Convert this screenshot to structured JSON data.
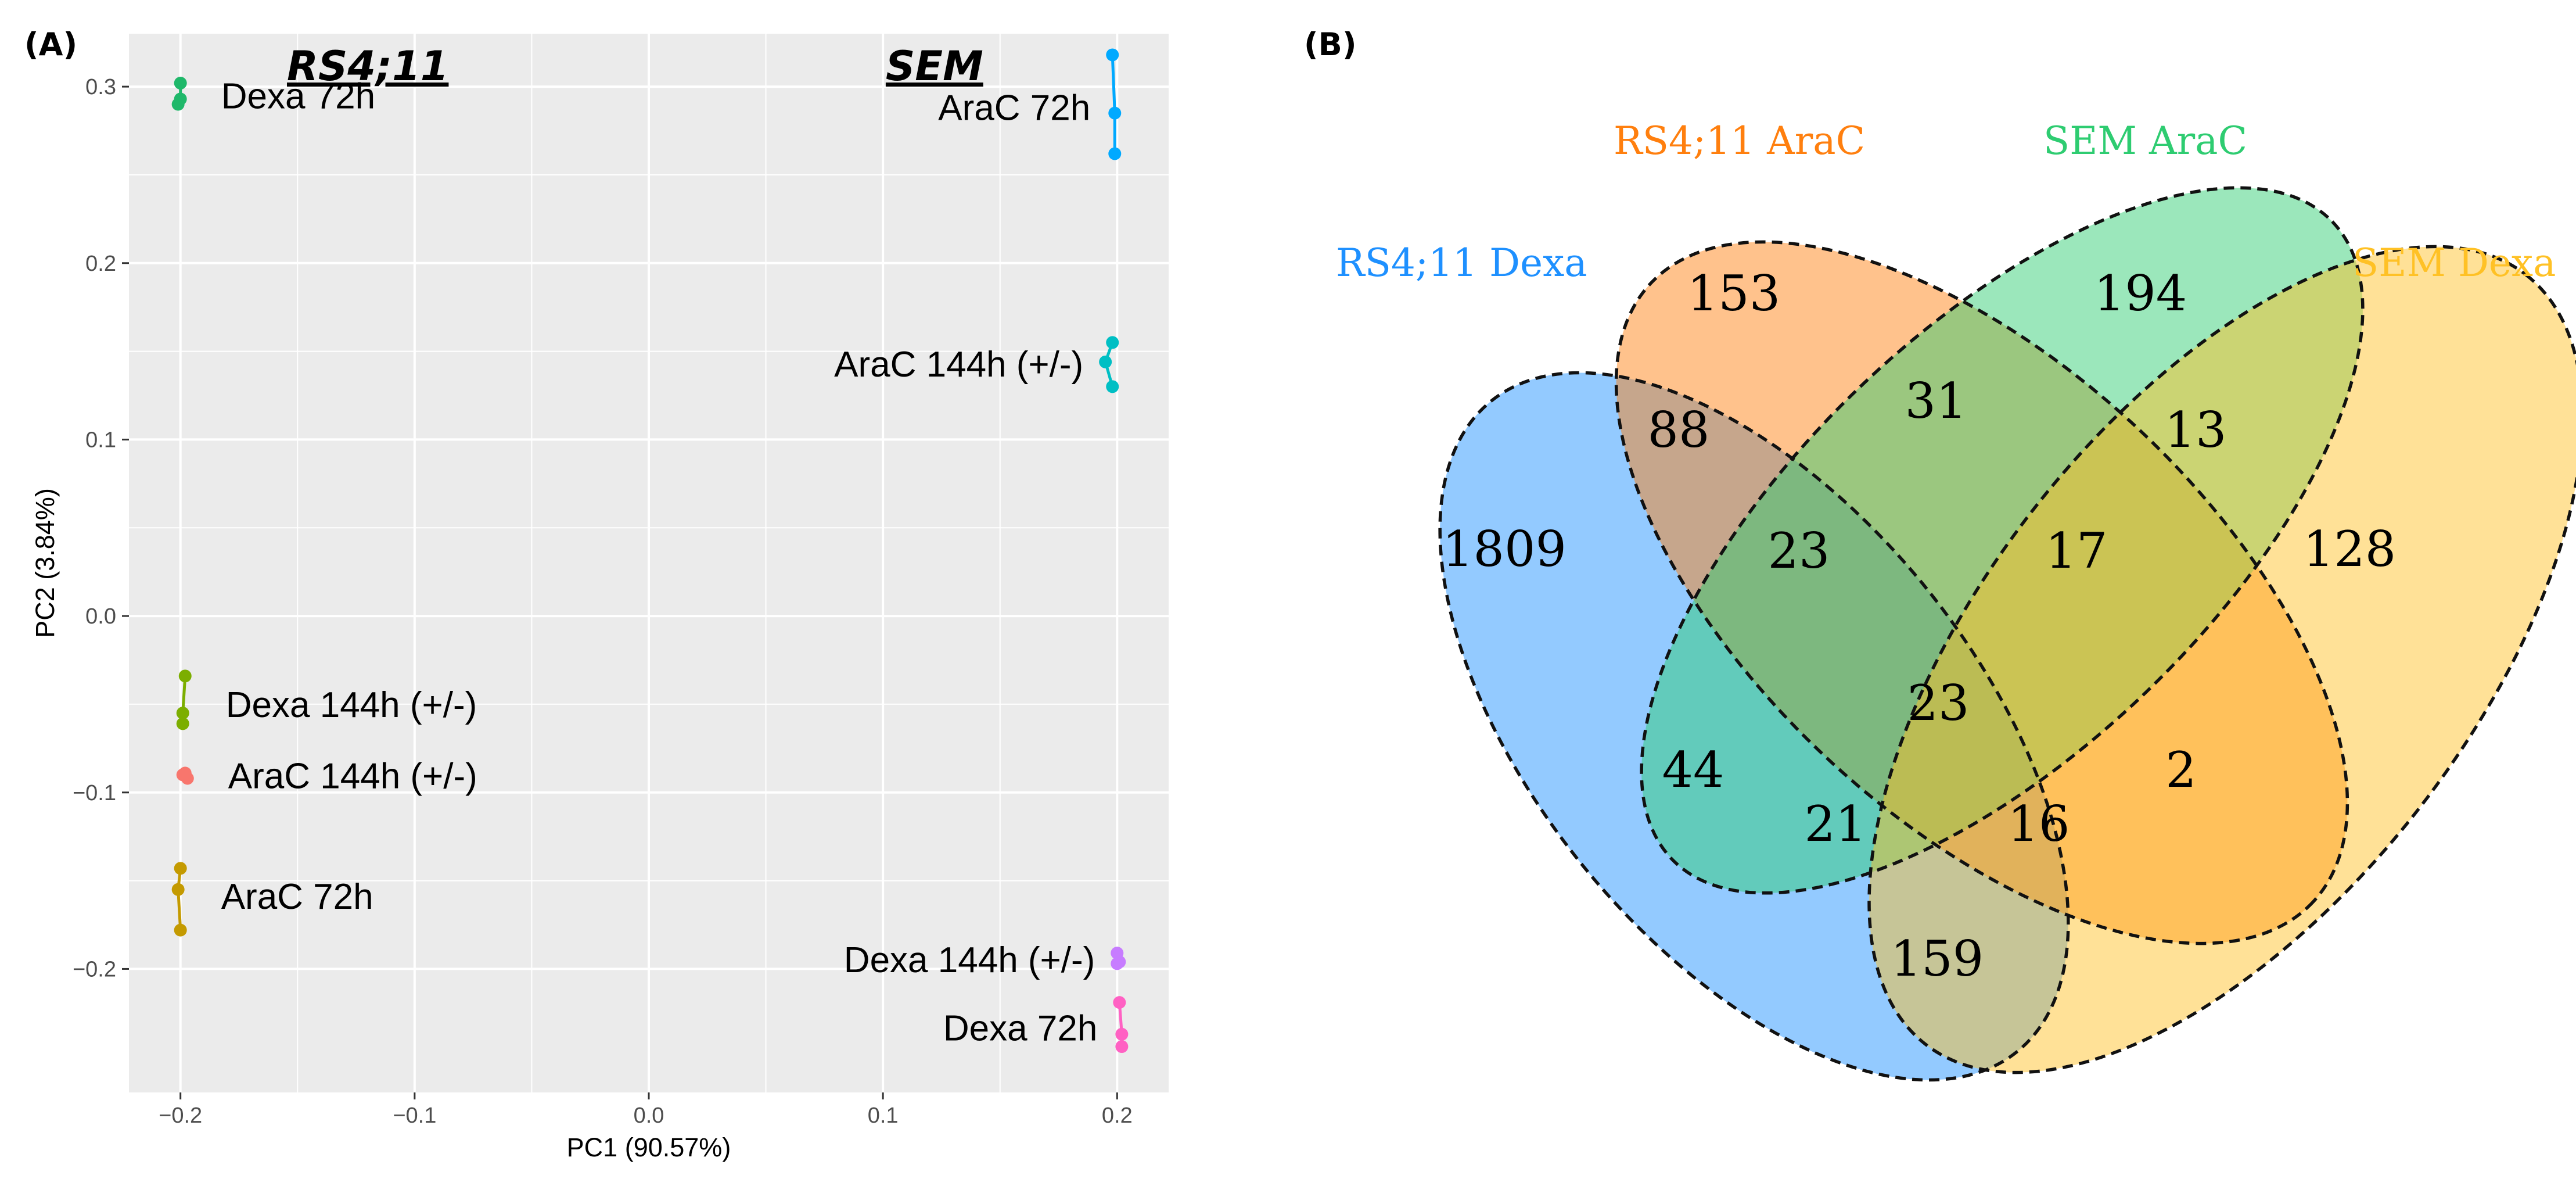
{
  "panel_a": {
    "label": "(A)",
    "chart_data": {
      "type": "scatter",
      "xlabel": "PC1 (90.57%)",
      "ylabel": "PC2 (3.84%)",
      "xlim": [
        -0.222,
        0.222
      ],
      "ylim": [
        -0.27,
        0.33
      ],
      "x_ticks": [
        -0.2,
        -0.1,
        0.0,
        0.1,
        0.2
      ],
      "x_tick_labels": [
        "−0.2",
        "−0.1",
        "0.0",
        "0.1",
        "0.2"
      ],
      "y_ticks": [
        0.3,
        0.2,
        0.1,
        0.0,
        -0.1,
        -0.2
      ],
      "y_tick_labels": [
        "0.3",
        "0.2",
        "0.1",
        "0.0",
        "−0.1",
        "−0.2"
      ],
      "grid": true,
      "group_titles": [
        {
          "text": "RS4;11",
          "x": -0.12
        },
        {
          "text": "SEM",
          "x": 0.122
        }
      ],
      "series": [
        {
          "name": "RS4;11 Dexa 72h",
          "label": "Dexa 72h",
          "color": "#1fb86a",
          "label_side": "right",
          "points": [
            {
              "x": -0.2,
              "y": 0.302
            },
            {
              "x": -0.201,
              "y": 0.29
            },
            {
              "x": -0.2,
              "y": 0.293
            }
          ]
        },
        {
          "name": "RS4;11 Dexa 144h (+/-)",
          "label": "Dexa 144h (+/-)",
          "color": "#7cae00",
          "label_side": "right",
          "points": [
            {
              "x": -0.198,
              "y": -0.034
            },
            {
              "x": -0.199,
              "y": -0.055
            },
            {
              "x": -0.199,
              "y": -0.061
            }
          ]
        },
        {
          "name": "RS4;11 AraC 144h (+/-)",
          "label": "AraC 144h (+/-)",
          "color": "#f8766d",
          "label_side": "right",
          "points": [
            {
              "x": -0.199,
              "y": -0.09
            },
            {
              "x": -0.197,
              "y": -0.092
            },
            {
              "x": -0.198,
              "y": -0.089
            }
          ]
        },
        {
          "name": "RS4;11 AraC 72h",
          "label": "AraC 72h",
          "color": "#c49a00",
          "label_side": "right",
          "points": [
            {
              "x": -0.2,
              "y": -0.143
            },
            {
              "x": -0.201,
              "y": -0.155
            },
            {
              "x": -0.2,
              "y": -0.178
            }
          ]
        },
        {
          "name": "SEM AraC 72h",
          "label": "AraC 72h",
          "color": "#00a9ff",
          "label_side": "left",
          "points": [
            {
              "x": 0.198,
              "y": 0.318
            },
            {
              "x": 0.199,
              "y": 0.285
            },
            {
              "x": 0.199,
              "y": 0.262
            }
          ]
        },
        {
          "name": "SEM AraC 144h (+/-)",
          "label": "AraC 144h (+/-)",
          "color": "#00bfc4",
          "label_side": "left",
          "points": [
            {
              "x": 0.198,
              "y": 0.155
            },
            {
              "x": 0.195,
              "y": 0.144
            },
            {
              "x": 0.198,
              "y": 0.13
            }
          ]
        },
        {
          "name": "SEM Dexa 144h (+/-)",
          "label": "Dexa 144h (+/-)",
          "color": "#c77cff",
          "label_side": "left",
          "points": [
            {
              "x": 0.2,
              "y": -0.191
            },
            {
              "x": 0.201,
              "y": -0.196
            },
            {
              "x": 0.2,
              "y": -0.197
            }
          ]
        },
        {
          "name": "SEM Dexa 72h",
          "label": "Dexa 72h",
          "color": "#ff61c3",
          "label_side": "left",
          "points": [
            {
              "x": 0.201,
              "y": -0.219
            },
            {
              "x": 0.202,
              "y": -0.237
            },
            {
              "x": 0.202,
              "y": -0.244
            }
          ]
        }
      ]
    }
  },
  "panel_b": {
    "label": "(B)",
    "chart_data": {
      "type": "venn",
      "sets": [
        {
          "name": "RS4;11 Dexa",
          "color": "#1e90ff"
        },
        {
          "name": "RS4;11 AraC",
          "color": "#ff7f0e"
        },
        {
          "name": "SEM AraC",
          "color": "#2ecc71"
        },
        {
          "name": "SEM Dexa",
          "color": "#ffc125"
        }
      ],
      "regions": [
        {
          "sets": [
            "RS4;11 Dexa"
          ],
          "count": 1809
        },
        {
          "sets": [
            "RS4;11 AraC"
          ],
          "count": 153
        },
        {
          "sets": [
            "SEM AraC"
          ],
          "count": 194
        },
        {
          "sets": [
            "SEM Dexa"
          ],
          "count": 128
        },
        {
          "sets": [
            "RS4;11 Dexa",
            "RS4;11 AraC"
          ],
          "count": 88
        },
        {
          "sets": [
            "RS4;11 AraC",
            "SEM AraC"
          ],
          "count": 31
        },
        {
          "sets": [
            "SEM AraC",
            "SEM Dexa"
          ],
          "count": 13
        },
        {
          "sets": [
            "RS4;11 Dexa",
            "SEM AraC"
          ],
          "count": 44
        },
        {
          "sets": [
            "RS4;11 AraC",
            "SEM Dexa"
          ],
          "count": 2
        },
        {
          "sets": [
            "RS4;11 Dexa",
            "SEM Dexa"
          ],
          "count": 159
        },
        {
          "sets": [
            "RS4;11 Dexa",
            "RS4;11 AraC",
            "SEM AraC"
          ],
          "count": 23
        },
        {
          "sets": [
            "RS4;11 AraC",
            "SEM AraC",
            "SEM Dexa"
          ],
          "count": 17
        },
        {
          "sets": [
            "RS4;11 Dexa",
            "SEM AraC",
            "SEM Dexa"
          ],
          "count": 21
        },
        {
          "sets": [
            "RS4;11 Dexa",
            "RS4;11 AraC",
            "SEM Dexa"
          ],
          "count": 16
        },
        {
          "sets": [
            "RS4;11 Dexa",
            "RS4;11 AraC",
            "SEM AraC",
            "SEM Dexa"
          ],
          "count": 23
        }
      ]
    }
  }
}
